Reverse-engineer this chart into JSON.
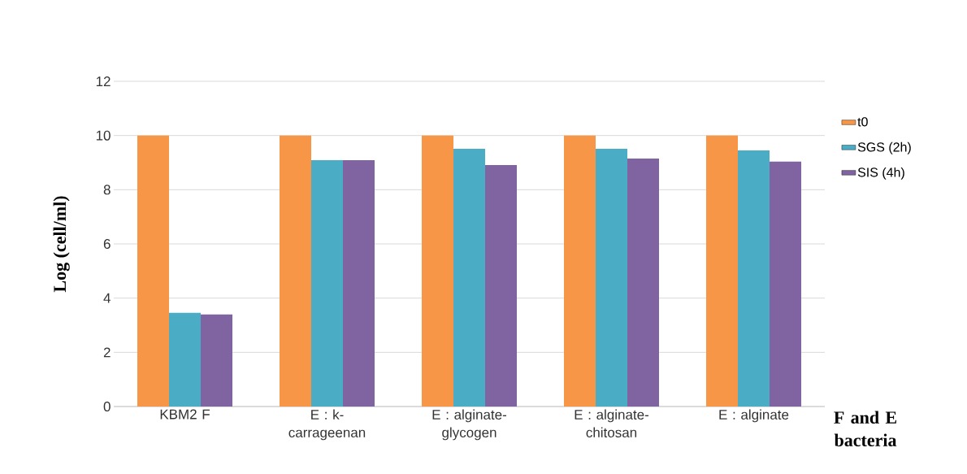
{
  "chart_data": {
    "type": "bar",
    "ylabel": "Log (cell/ml)",
    "xlabel": "F and E bacteria",
    "categories": [
      "KBM2 F",
      "E : k-carrageenan",
      "E : alginate-glycogen",
      "E : alginate-chitosan",
      "E : alginate"
    ],
    "series": [
      {
        "name": "t0",
        "color": "#f79646",
        "values": [
          10,
          10,
          10,
          10,
          10
        ]
      },
      {
        "name": "SGS (2h)",
        "color": "#4bacc6",
        "values": [
          3.46,
          9.09,
          9.51,
          9.51,
          9.45
        ]
      },
      {
        "name": "SIS (4h)",
        "color": "#8064a2",
        "values": [
          3.4,
          9.09,
          8.91,
          9.15,
          9.04
        ]
      }
    ],
    "ylim": [
      0,
      12
    ],
    "yticks": [
      0,
      2,
      4,
      6,
      8,
      10,
      12
    ],
    "grid": "y",
    "legend": "right"
  }
}
